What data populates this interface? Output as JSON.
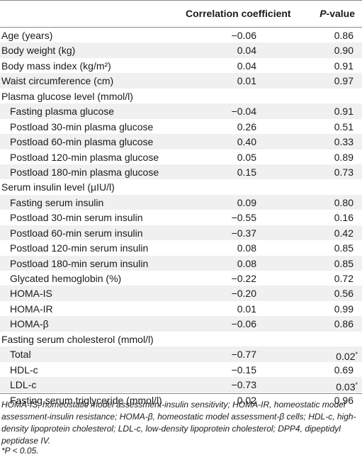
{
  "header": {
    "col_label": "",
    "col_coef": "Correlation coefficient",
    "col_p": "P-value"
  },
  "rows": [
    {
      "label": "Age (years)",
      "coef": "−0.06",
      "p": "0.86",
      "sub": false
    },
    {
      "label": "Body weight (kg)",
      "coef": "0.04",
      "p": "0.90",
      "sub": false
    },
    {
      "label": "Body mass index (kg/m²)",
      "coef": "0.04",
      "p": "0.91",
      "sub": false
    },
    {
      "label": "Waist circumference (cm)",
      "coef": "0.01",
      "p": "0.97",
      "sub": false
    },
    {
      "label": "Plasma glucose level (mmol/l)",
      "coef": "",
      "p": "",
      "sub": false
    },
    {
      "label": "Fasting plasma glucose",
      "coef": "−0.04",
      "p": "0.91",
      "sub": true
    },
    {
      "label": "Postload 30-min plasma glucose",
      "coef": "0.26",
      "p": "0.51",
      "sub": true
    },
    {
      "label": "Postload 60-min plasma glucose",
      "coef": "0.40",
      "p": "0.33",
      "sub": true
    },
    {
      "label": "Postload 120-min plasma glucose",
      "coef": "0.05",
      "p": "0.89",
      "sub": true
    },
    {
      "label": "Postload 180-min plasma glucose",
      "coef": "0.15",
      "p": "0.73",
      "sub": true
    },
    {
      "label": "Serum insulin level (µIU/l)",
      "coef": "",
      "p": "",
      "sub": false
    },
    {
      "label": "Fasting serum insulin",
      "coef": "0.09",
      "p": "0.80",
      "sub": true
    },
    {
      "label": "Postload 30-min serum insulin",
      "coef": "−0.55",
      "p": "0.16",
      "sub": true
    },
    {
      "label": "Postload 60-min serum insulin",
      "coef": "−0.37",
      "p": "0.42",
      "sub": true
    },
    {
      "label": "Postload 120-min serum insulin",
      "coef": "0.08",
      "p": "0.85",
      "sub": true
    },
    {
      "label": "Postload 180-min serum insulin",
      "coef": "0.08",
      "p": "0.85",
      "sub": true
    },
    {
      "label": "Glycated hemoglobin (%)",
      "coef": "−0.22",
      "p": "0.72",
      "sub": true
    },
    {
      "label": "HOMA-IS",
      "coef": "−0.20",
      "p": "0.56",
      "sub": true
    },
    {
      "label": "HOMA-IR",
      "coef": "0.01",
      "p": "0.99",
      "sub": true
    },
    {
      "label": "HOMA-β",
      "coef": "−0.06",
      "p": "0.86",
      "sub": true
    },
    {
      "label": "Fasting serum cholesterol (mmol/l)",
      "coef": "",
      "p": "",
      "sub": false
    },
    {
      "label": "Total",
      "coef": "−0.77",
      "p": "0.02*",
      "sub": true
    },
    {
      "label": "HDL-c",
      "coef": "−0.15",
      "p": "0.69",
      "sub": true
    },
    {
      "label": "LDL-c",
      "coef": "−0.73",
      "p": "0.03*",
      "sub": true
    },
    {
      "label": "Fasting serum triglyceride (mmol/l)",
      "coef": "0.02",
      "p": "0.96",
      "sub": true
    }
  ],
  "footnote": "HOMA-IS, homeostatic model assessment-insulin sensitivity; HOMA-IR, homeostatic model assessment-insulin resistance; HOMA-β, homeostatic model assessment-β cells; HDL-c, high-density lipoprotein cholesterol; LDL-c, low-density lipoprotein cholesterol; DPP4, dipeptidyl peptidase IV.",
  "significance_note": "*P < 0.05."
}
